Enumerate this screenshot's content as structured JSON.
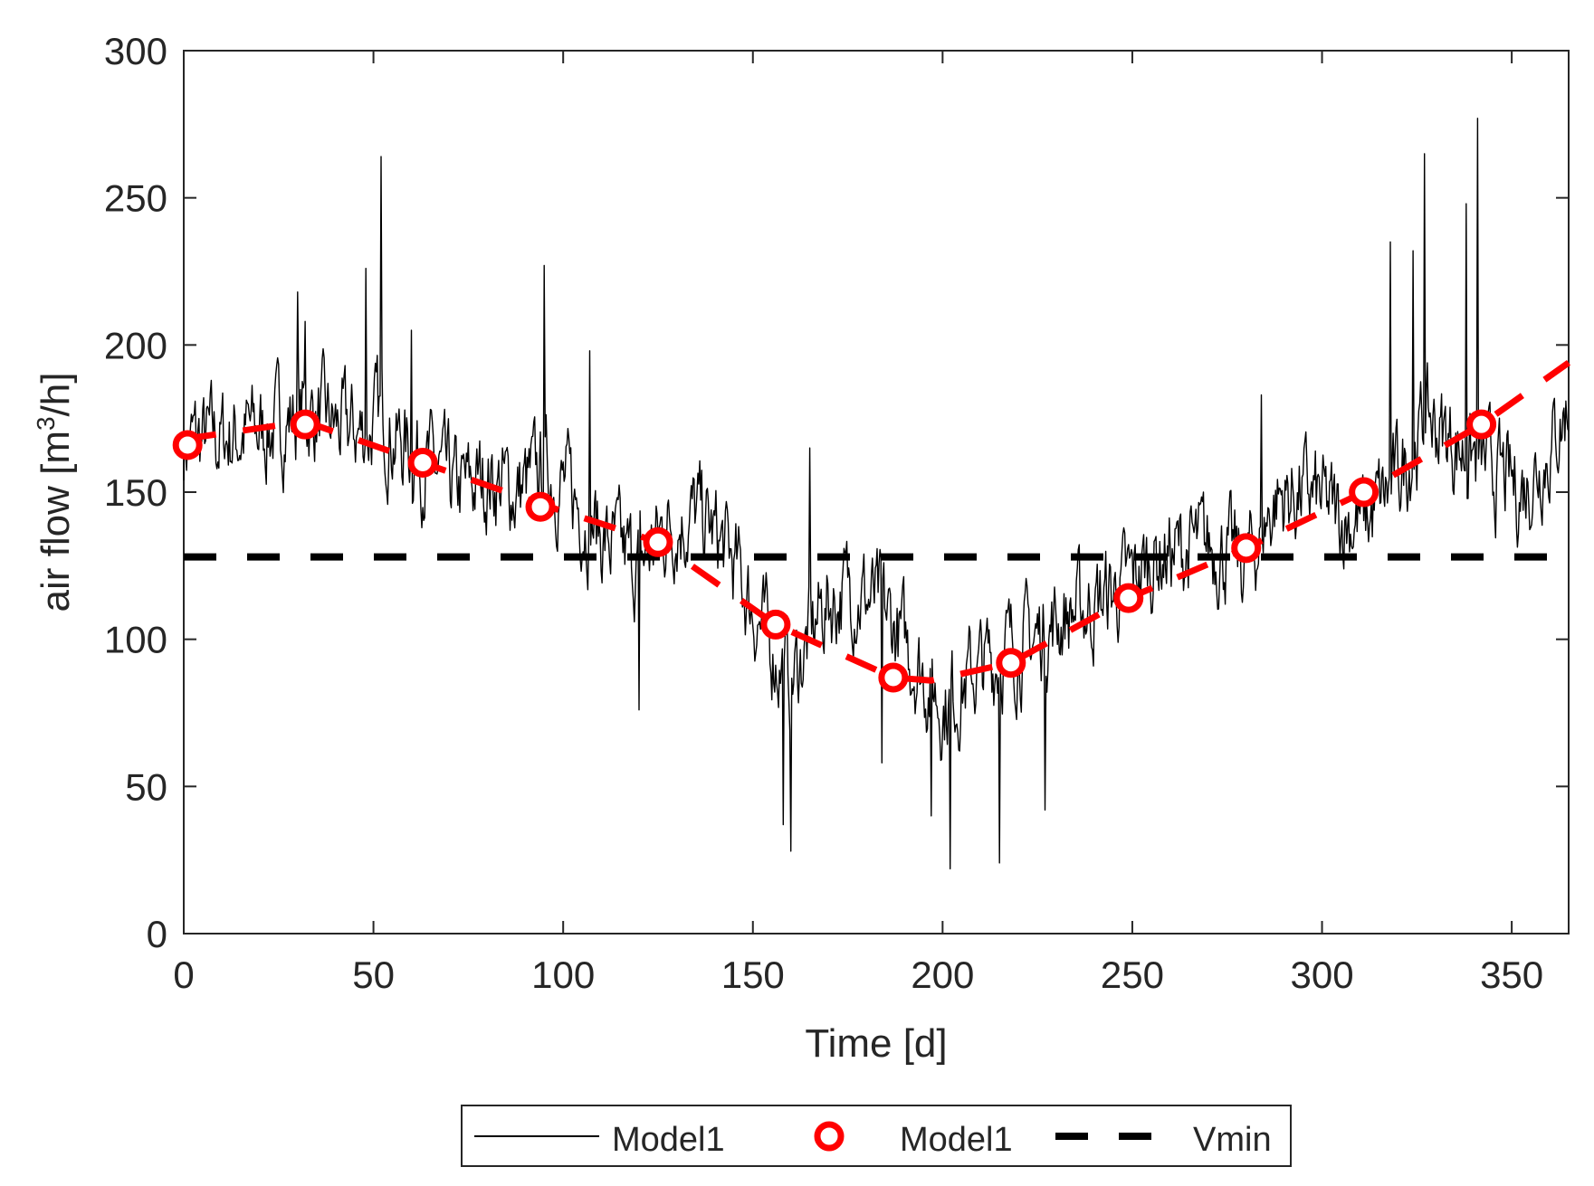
{
  "chart_data": {
    "type": "line",
    "title": "",
    "xlabel": "Time [d]",
    "ylabel_main": "air flow [m",
    "ylabel_sup": "3",
    "ylabel_tail": "/h]",
    "xlim": [
      0,
      365
    ],
    "ylim": [
      0,
      300
    ],
    "xticks": [
      0,
      50,
      100,
      150,
      200,
      250,
      300,
      350
    ],
    "yticks": [
      0,
      50,
      100,
      150,
      200,
      250,
      300
    ],
    "xtick_labels": [
      "0",
      "50",
      "100",
      "150",
      "200",
      "250",
      "300",
      "350"
    ],
    "ytick_labels": [
      "0",
      "50",
      "100",
      "150",
      "200",
      "250",
      "300"
    ],
    "grid": false,
    "legend_position": "bottom-center, outside",
    "series": [
      {
        "name": "Model1",
        "style": "solid-thin",
        "color": "#000000",
        "anchors_x": [
          0,
          8,
          16,
          24,
          32,
          40,
          48,
          52,
          56,
          64,
          72,
          80,
          88,
          96,
          104,
          112,
          120,
          128,
          136,
          144,
          152,
          160,
          168,
          176,
          184,
          192,
          200,
          208,
          216,
          224,
          232,
          240,
          248,
          256,
          264,
          272,
          280,
          288,
          296,
          304,
          312,
          320,
          328,
          336,
          344,
          352,
          360,
          365
        ],
        "anchors_y": [
          167,
          168,
          170,
          172,
          178,
          172,
          170,
          176,
          168,
          160,
          150,
          155,
          150,
          158,
          146,
          132,
          125,
          140,
          142,
          128,
          105,
          85,
          110,
          118,
          110,
          95,
          78,
          88,
          96,
          100,
          108,
          112,
          118,
          128,
          130,
          132,
          125,
          148,
          150,
          142,
          140,
          155,
          175,
          165,
          158,
          150,
          165,
          180
        ],
        "peaks": [
          [
            30,
            218
          ],
          [
            32,
            208
          ],
          [
            48,
            226
          ],
          [
            52,
            264
          ],
          [
            60,
            205
          ],
          [
            95,
            227
          ],
          [
            107,
            198
          ],
          [
            120,
            76
          ],
          [
            158,
            37
          ],
          [
            160,
            28
          ],
          [
            165,
            165
          ],
          [
            184,
            58
          ],
          [
            197,
            40
          ],
          [
            202,
            22
          ],
          [
            215,
            24
          ],
          [
            227,
            42
          ],
          [
            284,
            183
          ],
          [
            318,
            235
          ],
          [
            324,
            232
          ],
          [
            327,
            265
          ],
          [
            338,
            248
          ],
          [
            341,
            277
          ]
        ],
        "seed": 7
      },
      {
        "name": "Model1",
        "style": "red-dashed-circles",
        "color": "#ff0000",
        "x": [
          1,
          32,
          63,
          94,
          125,
          156,
          187,
          218,
          249,
          280,
          311,
          342
        ],
        "values": [
          166,
          173,
          160,
          145,
          133,
          105,
          87,
          92,
          114,
          131,
          150,
          173
        ],
        "trend_x": [
          0,
          32,
          63,
          94,
          125,
          156,
          187,
          197,
          218,
          249,
          280,
          311,
          342,
          365
        ],
        "trend_y": [
          168,
          174,
          160,
          146,
          133,
          105,
          87,
          86,
          92,
          114,
          131,
          150,
          173,
          194
        ]
      },
      {
        "name": "Vmin",
        "style": "black-dashed",
        "color": "#000000",
        "x": [
          0,
          360
        ],
        "values": [
          128,
          128
        ]
      }
    ],
    "legend": [
      {
        "label": "Model1",
        "marker": "thin-line"
      },
      {
        "label": "Model1",
        "marker": "red-circle"
      },
      {
        "label": "Vmin",
        "marker": "dashed-line"
      }
    ]
  }
}
